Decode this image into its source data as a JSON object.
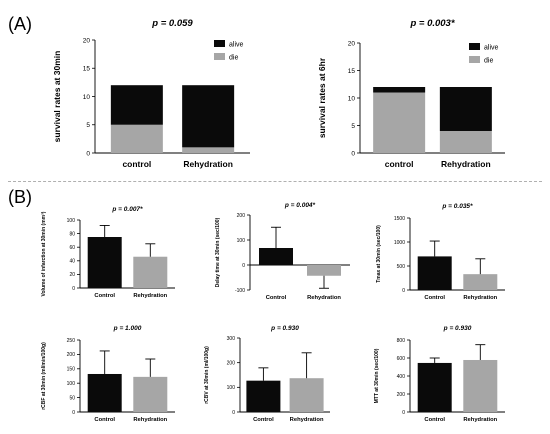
{
  "panels": {
    "a": "(A)",
    "b": "(B)"
  },
  "colors": {
    "black": "#0a0a0a",
    "gray": "#a6a6a6",
    "axis": "#000000"
  },
  "chart_data": [
    {
      "id": "a1",
      "type": "bar",
      "stacked": true,
      "title": "p = 0.059",
      "ylabel": "survival rates at 30min",
      "categories": [
        "control",
        "Rehydration"
      ],
      "ylim": [
        0,
        20
      ],
      "yticks": [
        0,
        5,
        10,
        15,
        20
      ],
      "series": [
        {
          "name": "die",
          "values": [
            5,
            1
          ],
          "color": "#a6a6a6"
        },
        {
          "name": "alive",
          "values": [
            7,
            11
          ],
          "color": "#0a0a0a"
        }
      ],
      "legend": "top-right"
    },
    {
      "id": "a2",
      "type": "bar",
      "stacked": true,
      "title": "p = 0.003*",
      "ylabel": "survival rates at 6hr",
      "categories": [
        "control",
        "Rehydration"
      ],
      "ylim": [
        0,
        20
      ],
      "yticks": [
        0,
        5,
        10,
        15,
        20
      ],
      "series": [
        {
          "name": "die",
          "values": [
            11,
            4
          ],
          "color": "#a6a6a6"
        },
        {
          "name": "alive",
          "values": [
            1,
            8
          ],
          "color": "#0a0a0a"
        }
      ],
      "legend": "top-right"
    },
    {
      "id": "b1",
      "type": "bar",
      "title": "p = 0.007*",
      "ylabel": "Volume of infarction at 30min (mm³)",
      "categories": [
        "Control",
        "Rehydration"
      ],
      "values": [
        75,
        46
      ],
      "errors": [
        17,
        19
      ],
      "bar_colors": [
        "#0a0a0a",
        "#a6a6a6"
      ],
      "ylim": [
        0,
        100
      ],
      "yticks": [
        0,
        20,
        40,
        60,
        80,
        100
      ]
    },
    {
      "id": "b2",
      "type": "bar",
      "title": "p = 0.004*",
      "ylabel": "Delay time at 30min (sec/100)",
      "categories": [
        "Control",
        "Rehydration"
      ],
      "values": [
        68,
        -43
      ],
      "errors": [
        83,
        50
      ],
      "bar_colors": [
        "#0a0a0a",
        "#a6a6a6"
      ],
      "ylim": [
        -100,
        200
      ],
      "yticks": [
        -100,
        0,
        100,
        200
      ],
      "category_labels_at": "bottom"
    },
    {
      "id": "b3",
      "type": "bar",
      "title": "p = 0.035*",
      "ylabel": "Tmax at 30min (sec/100)",
      "categories": [
        "Control",
        "Rehydration"
      ],
      "values": [
        700,
        330
      ],
      "errors": [
        320,
        320
      ],
      "bar_colors": [
        "#0a0a0a",
        "#a6a6a6"
      ],
      "ylim": [
        0,
        1500
      ],
      "yticks": [
        0,
        500,
        1000,
        1500
      ]
    },
    {
      "id": "b4",
      "type": "bar",
      "title": "p = 1.000",
      "ylabel": "rCBF at 30min (ml/min/100g)",
      "categories": [
        "Control",
        "Rehydration"
      ],
      "values": [
        132,
        122
      ],
      "errors": [
        80,
        62
      ],
      "bar_colors": [
        "#0a0a0a",
        "#a6a6a6"
      ],
      "ylim": [
        0,
        250
      ],
      "yticks": [
        0,
        50,
        100,
        150,
        200,
        250
      ]
    },
    {
      "id": "b5",
      "type": "bar",
      "title": "p = 0.930",
      "ylabel": "rCBV at 30min (ml/100g)",
      "categories": [
        "Control",
        "Rehydration"
      ],
      "values": [
        127,
        137
      ],
      "errors": [
        52,
        103
      ],
      "bar_colors": [
        "#0a0a0a",
        "#a6a6a6"
      ],
      "ylim": [
        0,
        300
      ],
      "yticks": [
        0,
        100,
        200,
        300
      ]
    },
    {
      "id": "b6",
      "type": "bar",
      "title": "p = 0.930",
      "ylabel": "MTT at 30min (sec/100)",
      "categories": [
        "Control",
        "Rehydration"
      ],
      "values": [
        545,
        578
      ],
      "errors": [
        55,
        170
      ],
      "bar_colors": [
        "#0a0a0a",
        "#a6a6a6"
      ],
      "ylim": [
        0,
        800
      ],
      "yticks": [
        0,
        200,
        400,
        600,
        800
      ]
    }
  ]
}
